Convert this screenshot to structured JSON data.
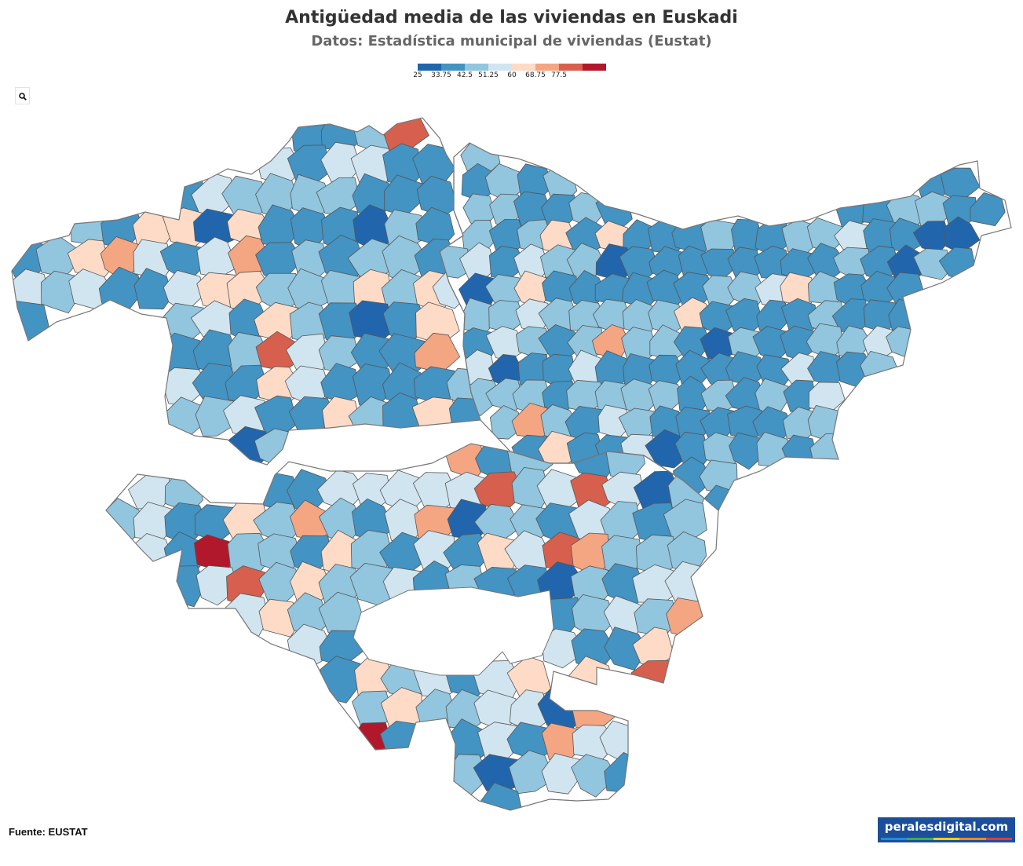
{
  "title": "Antigüedad media de las viviendas en Euskadi",
  "subtitle": "Datos: Estadística municipal de viviendas (Eustat)",
  "legend": {
    "breaks": [
      "25",
      "33.75",
      "42.5",
      "51.25",
      "60",
      "68.75",
      "77.5"
    ],
    "colors": [
      "#2166ac",
      "#4393c3",
      "#92c5de",
      "#d1e5f0",
      "#fddbc7",
      "#f4a582",
      "#d6604d",
      "#b2182b"
    ]
  },
  "zoom_icon": "search-icon",
  "source": "Fuente: EUSTAT",
  "brand": {
    "text": "peralesdigital.com",
    "stripe_colors": [
      "#1f8fd6",
      "#3fae49",
      "#f2d20c",
      "#f08a1c",
      "#e23a3a"
    ]
  },
  "chart_data": {
    "type": "choropleth",
    "region": "Euskadi",
    "measure": "Antigüedad media de las viviendas",
    "scale_breaks": [
      25,
      33.75,
      42.5,
      51.25,
      60,
      68.75,
      77.5
    ],
    "no_data_color": "#e5eeea",
    "provinces": [
      {
        "id": "bizkaia",
        "share_by_class": [
          0.04,
          0.38,
          0.3,
          0.12,
          0.1,
          0.04,
          0.02,
          0.0
        ]
      },
      {
        "id": "gipuzkoa",
        "share_by_class": [
          0.04,
          0.48,
          0.34,
          0.1,
          0.02,
          0.02,
          0.0,
          0.0
        ]
      },
      {
        "id": "araba",
        "share_by_class": [
          0.05,
          0.2,
          0.34,
          0.22,
          0.09,
          0.04,
          0.05,
          0.01
        ]
      }
    ]
  }
}
